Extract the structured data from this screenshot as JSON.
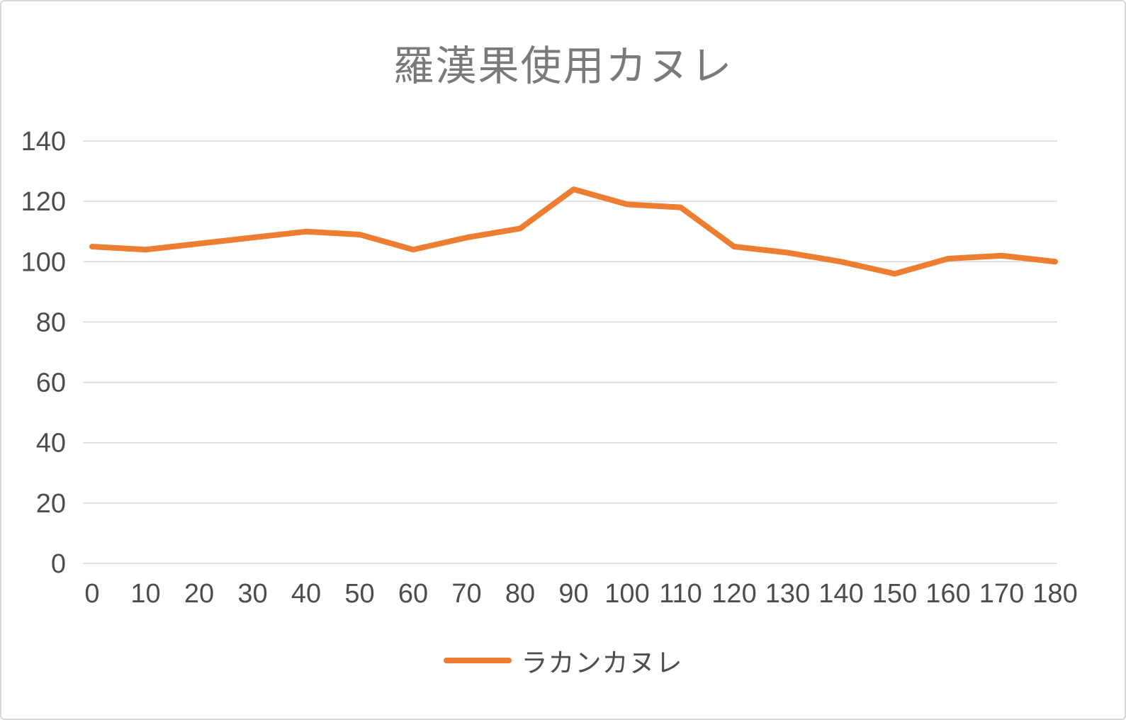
{
  "chart_data": {
    "type": "line",
    "title": "羅漢果使用カヌレ",
    "x": [
      0,
      10,
      20,
      30,
      40,
      50,
      60,
      70,
      80,
      90,
      100,
      110,
      120,
      130,
      140,
      150,
      160,
      170,
      180
    ],
    "series": [
      {
        "name": "ラカンカヌレ",
        "values": [
          105,
          104,
          106,
          108,
          110,
          109,
          104,
          108,
          111,
          124,
          119,
          118,
          105,
          103,
          100,
          96,
          101,
          102,
          100
        ]
      }
    ],
    "xlabel": "",
    "ylabel": "",
    "ylim": [
      0,
      140
    ],
    "yticks": [
      0,
      20,
      40,
      60,
      80,
      100,
      120,
      140
    ],
    "grid": true,
    "legend_position": "bottom-center",
    "colors": {
      "series": "#ED7D31",
      "gridline": "#D9D9D9",
      "axis_text": "#4D4D4D",
      "title_text": "#7A7A7A"
    }
  }
}
